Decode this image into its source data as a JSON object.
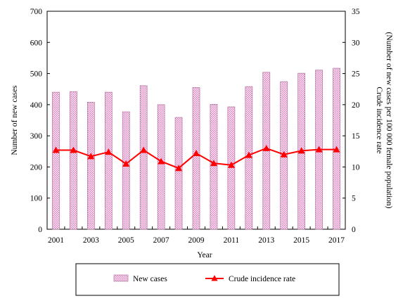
{
  "chart_data": {
    "type": "bar",
    "categories": [
      "2001",
      "2002",
      "2003",
      "2004",
      "2005",
      "2006",
      "2007",
      "2008",
      "2009",
      "2010",
      "2011",
      "2012",
      "2013",
      "2014",
      "2015",
      "2016",
      "2017"
    ],
    "x_tick_labels": [
      "2001",
      "2003",
      "2005",
      "2007",
      "2009",
      "2011",
      "2013",
      "2015",
      "2017"
    ],
    "series": [
      {
        "name": "New cases",
        "type": "bar",
        "axis": "left",
        "color": "#e8a8d0",
        "values": [
          440,
          442,
          408,
          440,
          377,
          461,
          400,
          359,
          455,
          401,
          393,
          458,
          504,
          474,
          501,
          511,
          517
        ]
      },
      {
        "name": "Crude incidence rate",
        "type": "line",
        "axis": "right",
        "color": "#ff0000",
        "values": [
          12.7,
          12.7,
          11.7,
          12.4,
          10.5,
          12.7,
          10.9,
          9.8,
          12.2,
          10.6,
          10.3,
          11.9,
          13.0,
          12.0,
          12.6,
          12.8,
          12.8
        ]
      }
    ],
    "xlabel": "Year",
    "ylabel": "Number of new cases",
    "y2label_line1": "Crude incidence rate",
    "y2label_line2": "(Number of new cases per 100 000 female population)",
    "ylim": [
      0,
      700
    ],
    "y_ticks": [
      0,
      100,
      200,
      300,
      400,
      500,
      600,
      700
    ],
    "y2lim": [
      0,
      35
    ],
    "y2_ticks": [
      0,
      5,
      10,
      15,
      20,
      25,
      30,
      35
    ],
    "grid": false,
    "legend_position": "bottom"
  }
}
